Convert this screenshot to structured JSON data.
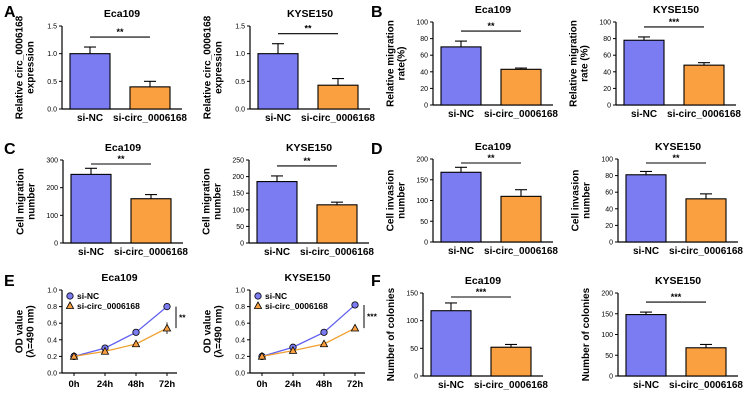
{
  "figure": {
    "panel_letters": [
      "A",
      "B",
      "C",
      "D",
      "E",
      "F"
    ]
  },
  "colors": {
    "control_bar": "#7b7bf2",
    "treatment_bar": "#fba040",
    "control_line": "#6060f0",
    "treatment_line": "#f0a030",
    "axis": "#000000"
  },
  "chart_data": [
    {
      "id": "A1",
      "panel": "A",
      "type": "bar",
      "title": "Eca109",
      "ylabel": [
        "Relative circ_0006168",
        "expression"
      ],
      "categories": [
        "si-NC",
        "si-circ_0006168"
      ],
      "values": [
        1.0,
        0.4
      ],
      "errors": [
        0.12,
        0.1
      ],
      "ylim": [
        0,
        1.5
      ],
      "yticks": [
        "0.0",
        "0.5",
        "1.0",
        "1.5"
      ],
      "significance": "**"
    },
    {
      "id": "A2",
      "panel": "A",
      "type": "bar",
      "title": "KYSE150",
      "ylabel": [
        "Relative circ_0006168",
        "expression"
      ],
      "categories": [
        "si-NC",
        "si-circ_0006168"
      ],
      "values": [
        1.0,
        0.43
      ],
      "errors": [
        0.18,
        0.12
      ],
      "ylim": [
        0,
        1.5
      ],
      "yticks": [
        "0.0",
        "0.5",
        "1.0",
        "1.5"
      ],
      "significance": "**"
    },
    {
      "id": "B1",
      "panel": "B",
      "type": "bar",
      "title": "Eca109",
      "ylabel": [
        "Relative migration",
        "rate(%)"
      ],
      "categories": [
        "si-NC",
        "si-circ_0006168"
      ],
      "values": [
        70,
        43
      ],
      "errors": [
        7,
        1.5
      ],
      "ylim": [
        0,
        100
      ],
      "yticks": [
        "0",
        "20",
        "40",
        "60",
        "80",
        "100"
      ],
      "significance": "**"
    },
    {
      "id": "B2",
      "panel": "B",
      "type": "bar",
      "title": "KYSE150",
      "ylabel": [
        "Relative migration",
        "rate (%)"
      ],
      "categories": [
        "si-NC",
        "si-circ_0006168"
      ],
      "values": [
        78,
        48
      ],
      "errors": [
        4,
        3
      ],
      "ylim": [
        0,
        100
      ],
      "yticks": [
        "0",
        "20",
        "40",
        "60",
        "80",
        "100"
      ],
      "significance": "***"
    },
    {
      "id": "C1",
      "panel": "C",
      "type": "bar",
      "title": "Eca109",
      "ylabel": [
        "Cell migration",
        "number"
      ],
      "categories": [
        "si-NC",
        "si-circ_0006168"
      ],
      "values": [
        248,
        160
      ],
      "errors": [
        22,
        15
      ],
      "ylim": [
        0,
        300
      ],
      "yticks": [
        "0",
        "100",
        "200",
        "300"
      ],
      "significance": "**"
    },
    {
      "id": "C2",
      "panel": "C",
      "type": "bar",
      "title": "KYSE150",
      "ylabel": [
        "Cell migration",
        "number"
      ],
      "categories": [
        "si-NC",
        "si-circ_0006168"
      ],
      "values": [
        185,
        115
      ],
      "errors": [
        17,
        8
      ],
      "ylim": [
        0,
        250
      ],
      "yticks": [
        "0",
        "50",
        "100",
        "150",
        "200",
        "250"
      ],
      "significance": "**"
    },
    {
      "id": "D1",
      "panel": "D",
      "type": "bar",
      "title": "Eca109",
      "ylabel": [
        "Cell invasion",
        "number"
      ],
      "categories": [
        "si-NC",
        "si-circ_0006168"
      ],
      "values": [
        168,
        110
      ],
      "errors": [
        12,
        16
      ],
      "ylim": [
        0,
        200
      ],
      "yticks": [
        "0",
        "50",
        "100",
        "150",
        "200"
      ],
      "significance": "**"
    },
    {
      "id": "D2",
      "panel": "D",
      "type": "bar",
      "title": "KYSE150",
      "ylabel": [
        "Cell invasion",
        "number"
      ],
      "categories": [
        "si-NC",
        "si-circ_0006168"
      ],
      "values": [
        81,
        52
      ],
      "errors": [
        4,
        6
      ],
      "ylim": [
        0,
        100
      ],
      "yticks": [
        "0",
        "20",
        "40",
        "60",
        "80",
        "100"
      ],
      "significance": "**"
    },
    {
      "id": "E1",
      "panel": "E",
      "type": "line",
      "title": "Eca109",
      "ylabel": [
        "OD value",
        "(λ=490 nm)"
      ],
      "x": [
        "0h",
        "24h",
        "48h",
        "72h"
      ],
      "ylim": [
        0,
        1.0
      ],
      "yticks": [
        "0.0",
        "0.2",
        "0.4",
        "0.6",
        "0.8",
        "1.0"
      ],
      "series": [
        {
          "name": "si-NC",
          "marker": "circle",
          "values": [
            0.2,
            0.3,
            0.49,
            0.8
          ],
          "errors": [
            0.02,
            0.02,
            0.03,
            0.03
          ]
        },
        {
          "name": "si-circ_0006168",
          "marker": "triangle",
          "values": [
            0.2,
            0.26,
            0.35,
            0.54
          ],
          "errors": [
            0.02,
            0.02,
            0.03,
            0.07
          ]
        }
      ],
      "significance": "**"
    },
    {
      "id": "E2",
      "panel": "E",
      "type": "line",
      "title": "KYSE150",
      "ylabel": [
        "OD value",
        "(λ=490 nm)"
      ],
      "x": [
        "0h",
        "24h",
        "48h",
        "72h"
      ],
      "ylim": [
        0,
        1.0
      ],
      "yticks": [
        "0.0",
        "0.2",
        "0.4",
        "0.6",
        "0.8",
        "1.0"
      ],
      "series": [
        {
          "name": "si-NC",
          "marker": "circle",
          "values": [
            0.2,
            0.31,
            0.49,
            0.82
          ],
          "errors": [
            0.02,
            0.02,
            0.02,
            0.02
          ]
        },
        {
          "name": "si-circ_0006168",
          "marker": "triangle",
          "values": [
            0.2,
            0.27,
            0.35,
            0.54
          ],
          "errors": [
            0.02,
            0.02,
            0.02,
            0.02
          ]
        }
      ],
      "significance": "***"
    },
    {
      "id": "F1",
      "panel": "F",
      "type": "bar",
      "title": "Eca109",
      "ylabel": [
        "Number of colonies"
      ],
      "categories": [
        "si-NC",
        "si-circ_0006168"
      ],
      "values": [
        118,
        52
      ],
      "errors": [
        14,
        5
      ],
      "ylim": [
        0,
        150
      ],
      "yticks": [
        "0",
        "50",
        "100",
        "150"
      ],
      "significance": "***"
    },
    {
      "id": "F2",
      "panel": "F",
      "type": "bar",
      "title": "KYSE150",
      "ylabel": [
        "Number of colonies"
      ],
      "categories": [
        "si-NC",
        "si-circ_0006168"
      ],
      "values": [
        148,
        68
      ],
      "errors": [
        6,
        8
      ],
      "ylim": [
        0,
        200
      ],
      "yticks": [
        "0",
        "50",
        "100",
        "150",
        "200"
      ],
      "significance": "***"
    }
  ]
}
